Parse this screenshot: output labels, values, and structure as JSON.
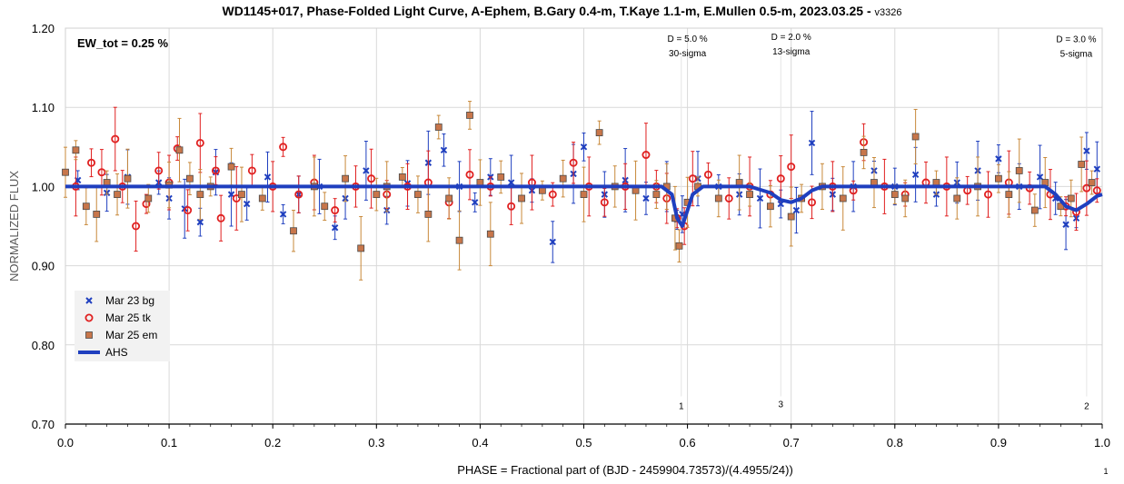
{
  "chart_data": {
    "type": "scatter",
    "title": "WD1145+017, Phase-Folded Light Curve, A-Ephem, B.Gary 0.4-m, T.Kaye 1.1-m, E.Mullen 0.5-m, 2023.03.25 -",
    "title_suffix": "v3326",
    "xlabel": "PHASE = Fractional part of (BJD - 2459904.73573)/(4.4955/24))",
    "ylabel": "NORMALIZED FLUX",
    "xlim": [
      0.0,
      1.0
    ],
    "ylim": [
      0.7,
      1.2
    ],
    "x_ticks": [
      "0.0",
      "0.1",
      "0.2",
      "0.3",
      "0.4",
      "0.5",
      "0.6",
      "0.7",
      "0.8",
      "0.9",
      "1.0"
    ],
    "y_ticks": [
      "0.70",
      "0.80",
      "0.90",
      "1.00",
      "1.10",
      "1.20"
    ],
    "grid": true,
    "legend_position": "lower-left",
    "corner_mark": "1",
    "summary_label": "EW_tot = 0.25 %",
    "series": [
      {
        "name": "Mar 23 bg",
        "marker": "x",
        "color": "#1f3fbf",
        "points": [
          [
            0.012,
            1.008
          ],
          [
            0.04,
            0.992
          ],
          [
            0.06,
            1.012
          ],
          [
            0.09,
            1.005
          ],
          [
            0.1,
            0.985
          ],
          [
            0.115,
            0.972
          ],
          [
            0.13,
            0.955
          ],
          [
            0.145,
            1.018
          ],
          [
            0.16,
            0.99
          ],
          [
            0.175,
            0.978
          ],
          [
            0.195,
            1.012
          ],
          [
            0.21,
            0.965
          ],
          [
            0.225,
            0.99
          ],
          [
            0.245,
            1.0
          ],
          [
            0.26,
            0.948
          ],
          [
            0.27,
            0.985
          ],
          [
            0.29,
            1.02
          ],
          [
            0.31,
            0.97
          ],
          [
            0.33,
            1.004
          ],
          [
            0.35,
            1.03
          ],
          [
            0.365,
            1.046
          ],
          [
            0.38,
            1.0
          ],
          [
            0.395,
            0.98
          ],
          [
            0.41,
            1.012
          ],
          [
            0.43,
            1.005
          ],
          [
            0.45,
            0.995
          ],
          [
            0.47,
            0.93
          ],
          [
            0.49,
            1.016
          ],
          [
            0.5,
            1.05
          ],
          [
            0.52,
            0.99
          ],
          [
            0.54,
            1.008
          ],
          [
            0.56,
            0.985
          ],
          [
            0.58,
            1.0
          ],
          [
            0.59,
            0.958
          ],
          [
            0.595,
            0.965
          ],
          [
            0.61,
            1.01
          ],
          [
            0.63,
            1.0
          ],
          [
            0.65,
            0.99
          ],
          [
            0.67,
            0.985
          ],
          [
            0.69,
            0.978
          ],
          [
            0.705,
            0.97
          ],
          [
            0.72,
            1.055
          ],
          [
            0.74,
            0.99
          ],
          [
            0.76,
            1.0
          ],
          [
            0.78,
            1.02
          ],
          [
            0.8,
            1.0
          ],
          [
            0.82,
            1.015
          ],
          [
            0.84,
            0.99
          ],
          [
            0.86,
            1.005
          ],
          [
            0.88,
            1.02
          ],
          [
            0.9,
            1.035
          ],
          [
            0.92,
            1.0
          ],
          [
            0.94,
            1.012
          ],
          [
            0.955,
            0.985
          ],
          [
            0.965,
            0.952
          ],
          [
            0.975,
            0.96
          ],
          [
            0.985,
            1.045
          ],
          [
            0.995,
            1.022
          ]
        ]
      },
      {
        "name": "Mar 25 tk",
        "marker": "circle",
        "color": "#e02020",
        "points": [
          [
            0.01,
            1.0
          ],
          [
            0.025,
            1.03
          ],
          [
            0.035,
            1.018
          ],
          [
            0.048,
            1.06
          ],
          [
            0.055,
            1.0
          ],
          [
            0.068,
            0.95
          ],
          [
            0.078,
            0.978
          ],
          [
            0.09,
            1.02
          ],
          [
            0.1,
            1.005
          ],
          [
            0.108,
            1.048
          ],
          [
            0.118,
            0.97
          ],
          [
            0.13,
            1.055
          ],
          [
            0.145,
            1.02
          ],
          [
            0.15,
            0.96
          ],
          [
            0.165,
            0.985
          ],
          [
            0.18,
            1.02
          ],
          [
            0.2,
            1.0
          ],
          [
            0.21,
            1.05
          ],
          [
            0.225,
            0.99
          ],
          [
            0.24,
            1.005
          ],
          [
            0.26,
            0.97
          ],
          [
            0.28,
            1.0
          ],
          [
            0.295,
            1.01
          ],
          [
            0.31,
            0.99
          ],
          [
            0.33,
            1.0
          ],
          [
            0.35,
            1.005
          ],
          [
            0.37,
            0.98
          ],
          [
            0.39,
            1.015
          ],
          [
            0.41,
            1.0
          ],
          [
            0.43,
            0.975
          ],
          [
            0.45,
            1.005
          ],
          [
            0.47,
            0.99
          ],
          [
            0.49,
            1.03
          ],
          [
            0.505,
            1.0
          ],
          [
            0.52,
            0.98
          ],
          [
            0.54,
            1.0
          ],
          [
            0.56,
            1.04
          ],
          [
            0.57,
            1.0
          ],
          [
            0.58,
            0.985
          ],
          [
            0.59,
            0.96
          ],
          [
            0.597,
            0.95
          ],
          [
            0.605,
            1.01
          ],
          [
            0.62,
            1.015
          ],
          [
            0.64,
            0.985
          ],
          [
            0.66,
            1.0
          ],
          [
            0.68,
            0.99
          ],
          [
            0.69,
            1.01
          ],
          [
            0.7,
            1.025
          ],
          [
            0.72,
            0.98
          ],
          [
            0.74,
            1.0
          ],
          [
            0.76,
            0.995
          ],
          [
            0.77,
            1.056
          ],
          [
            0.79,
            1.0
          ],
          [
            0.81,
            0.99
          ],
          [
            0.83,
            1.005
          ],
          [
            0.85,
            1.0
          ],
          [
            0.87,
            0.995
          ],
          [
            0.89,
            0.99
          ],
          [
            0.91,
            1.005
          ],
          [
            0.93,
            0.998
          ],
          [
            0.95,
            0.99
          ],
          [
            0.965,
            0.975
          ],
          [
            0.975,
            0.968
          ],
          [
            0.985,
            0.998
          ],
          [
            0.995,
            0.995
          ]
        ]
      },
      {
        "name": "Mar 25 em",
        "marker": "square",
        "color": "#c8764a",
        "points": [
          [
            0.0,
            1.018
          ],
          [
            0.01,
            1.046
          ],
          [
            0.02,
            0.975
          ],
          [
            0.03,
            0.965
          ],
          [
            0.04,
            1.005
          ],
          [
            0.05,
            0.99
          ],
          [
            0.06,
            1.01
          ],
          [
            0.08,
            0.985
          ],
          [
            0.1,
            1.002
          ],
          [
            0.11,
            1.046
          ],
          [
            0.12,
            1.01
          ],
          [
            0.13,
            0.99
          ],
          [
            0.14,
            1.0
          ],
          [
            0.16,
            1.025
          ],
          [
            0.17,
            0.99
          ],
          [
            0.19,
            0.985
          ],
          [
            0.22,
            0.944
          ],
          [
            0.24,
            1.0
          ],
          [
            0.25,
            0.975
          ],
          [
            0.27,
            1.01
          ],
          [
            0.285,
            0.922
          ],
          [
            0.3,
            0.99
          ],
          [
            0.31,
            1.0
          ],
          [
            0.325,
            1.012
          ],
          [
            0.34,
            0.99
          ],
          [
            0.35,
            0.965
          ],
          [
            0.36,
            1.075
          ],
          [
            0.37,
            0.985
          ],
          [
            0.38,
            0.932
          ],
          [
            0.39,
            1.09
          ],
          [
            0.4,
            1.005
          ],
          [
            0.41,
            0.94
          ],
          [
            0.42,
            1.012
          ],
          [
            0.44,
            0.985
          ],
          [
            0.46,
            0.995
          ],
          [
            0.48,
            1.01
          ],
          [
            0.5,
            0.99
          ],
          [
            0.515,
            1.068
          ],
          [
            0.53,
            1.0
          ],
          [
            0.55,
            0.995
          ],
          [
            0.57,
            0.99
          ],
          [
            0.58,
            1.0
          ],
          [
            0.588,
            0.96
          ],
          [
            0.592,
            0.925
          ],
          [
            0.6,
            0.98
          ],
          [
            0.61,
            1.0
          ],
          [
            0.63,
            0.985
          ],
          [
            0.65,
            1.005
          ],
          [
            0.66,
            0.99
          ],
          [
            0.68,
            0.975
          ],
          [
            0.7,
            0.962
          ],
          [
            0.71,
            0.985
          ],
          [
            0.73,
            1.0
          ],
          [
            0.75,
            0.985
          ],
          [
            0.77,
            1.043
          ],
          [
            0.78,
            1.005
          ],
          [
            0.8,
            0.99
          ],
          [
            0.81,
            0.985
          ],
          [
            0.82,
            1.063
          ],
          [
            0.84,
            1.005
          ],
          [
            0.86,
            0.985
          ],
          [
            0.88,
            1.0
          ],
          [
            0.9,
            1.01
          ],
          [
            0.91,
            0.99
          ],
          [
            0.92,
            1.02
          ],
          [
            0.935,
            0.97
          ],
          [
            0.945,
            1.005
          ],
          [
            0.96,
            0.975
          ],
          [
            0.97,
            0.985
          ],
          [
            0.98,
            1.028
          ],
          [
            0.99,
            1.005
          ]
        ]
      },
      {
        "name": "AHS",
        "marker": "line",
        "color": "#1f3fbf",
        "points": [
          [
            0.0,
            1.0
          ],
          [
            0.575,
            1.0
          ],
          [
            0.585,
            0.99
          ],
          [
            0.59,
            0.96
          ],
          [
            0.595,
            0.95
          ],
          [
            0.6,
            0.97
          ],
          [
            0.605,
            0.99
          ],
          [
            0.615,
            1.0
          ],
          [
            0.66,
            1.0
          ],
          [
            0.68,
            0.992
          ],
          [
            0.69,
            0.983
          ],
          [
            0.7,
            0.98
          ],
          [
            0.71,
            0.985
          ],
          [
            0.72,
            0.995
          ],
          [
            0.73,
            1.0
          ],
          [
            0.945,
            1.0
          ],
          [
            0.955,
            0.99
          ],
          [
            0.965,
            0.975
          ],
          [
            0.975,
            0.97
          ],
          [
            0.985,
            0.978
          ],
          [
            0.995,
            0.988
          ],
          [
            1.0,
            0.99
          ]
        ]
      }
    ],
    "annotations": [
      {
        "line1": "D = 5.0 %",
        "line2": "30-sigma",
        "x": 0.6,
        "y": 1.183
      },
      {
        "line1": "D = 2.0 %",
        "line2": "13-sigma",
        "x": 0.7,
        "y": 1.185
      },
      {
        "line1": "D = 3.0 %",
        "line2": "5-sigma",
        "x": 0.975,
        "y": 1.182
      }
    ],
    "dip_labels": [
      {
        "label": "1",
        "x": 0.594,
        "y": 0.719
      },
      {
        "label": "3",
        "x": 0.69,
        "y": 0.721
      },
      {
        "label": "2",
        "x": 0.985,
        "y": 0.719
      }
    ]
  }
}
